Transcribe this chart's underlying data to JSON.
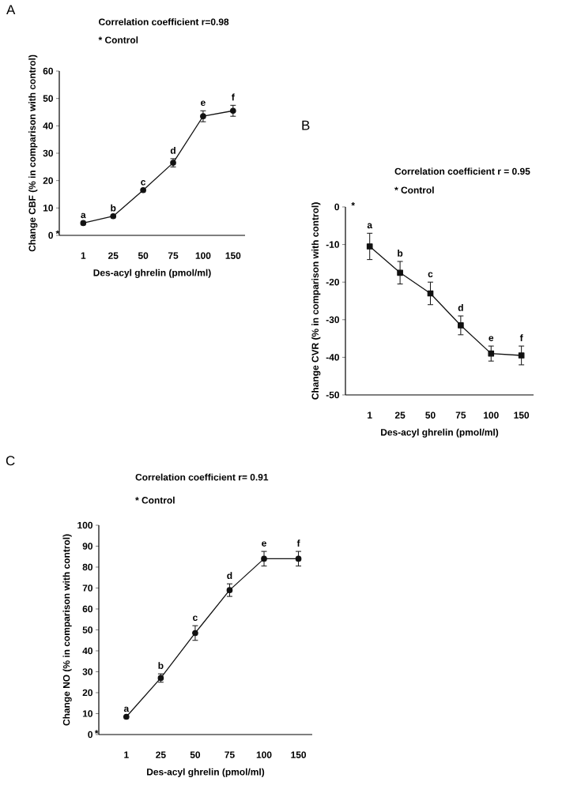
{
  "chart_data": [
    {
      "type": "line",
      "title": "A",
      "xlabel": "Des-acyl ghrelin (pmol/ml)",
      "ylabel": "Change CBF (% in comparison with control)",
      "categories": [
        "1",
        "25",
        "50",
        "75",
        "100",
        "150"
      ],
      "values": [
        4.5,
        7,
        16.5,
        26.5,
        43.5,
        45.5
      ],
      "errors": [
        null,
        null,
        null,
        1.5,
        2,
        2
      ],
      "value_labels": [
        "a",
        "b",
        "c",
        "d",
        "e",
        "f"
      ],
      "color": "#111111",
      "marker": "circle",
      "line_style": "solid",
      "ylim": [
        0,
        60
      ],
      "yticks": [
        0,
        10,
        20,
        30,
        40,
        50,
        60
      ],
      "annotations": [
        "Correlation coefficient r=0.98",
        "* Control",
        "*"
      ]
    },
    {
      "type": "line",
      "title": "B",
      "xlabel": "Des-acyl ghrelin (pmol/ml)",
      "ylabel": "Change CVR (% in comparison with control)",
      "categories": [
        "1",
        "25",
        "50",
        "75",
        "100",
        "150"
      ],
      "values": [
        -10.5,
        -17.5,
        -23,
        -31.5,
        -39,
        -39.5
      ],
      "errors": [
        3.5,
        3,
        3,
        2.5,
        2,
        2.5
      ],
      "value_labels": [
        "a",
        "b",
        "c",
        "d",
        "e",
        "f"
      ],
      "color": "#111111",
      "marker": "square",
      "line_style": "solid",
      "ylim": [
        -50,
        0
      ],
      "yticks": [
        -50,
        -40,
        -30,
        -20,
        -10,
        0
      ],
      "annotations": [
        "Correlation coefficient r = 0.95",
        "* Control",
        "*"
      ]
    },
    {
      "type": "line",
      "title": "C",
      "xlabel": "Des-acyl ghrelin (pmol/ml)",
      "ylabel": "Change NO (% in comparison with control)",
      "categories": [
        "1",
        "25",
        "50",
        "75",
        "100",
        "150"
      ],
      "values": [
        8.5,
        27,
        48.5,
        69,
        84,
        84
      ],
      "errors": [
        null,
        2,
        3.5,
        3,
        3.5,
        3.5
      ],
      "value_labels": [
        "a",
        "b",
        "c",
        "d",
        "e",
        "f"
      ],
      "color": "#111111",
      "marker": "circle",
      "line_style": "solid",
      "ylim": [
        0,
        100
      ],
      "yticks": [
        0,
        10,
        20,
        30,
        40,
        50,
        60,
        70,
        80,
        90,
        100
      ],
      "annotations": [
        "Correlation coefficient r= 0.91",
        "* Control",
        "*"
      ]
    }
  ]
}
